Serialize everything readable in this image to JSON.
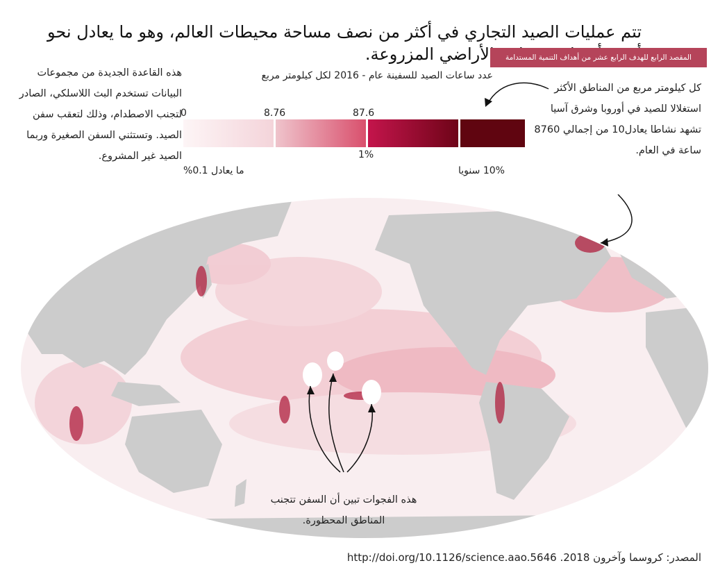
{
  "title": "تتم عمليات الصيد التجاري في أكثر من نصف مساحة محيطات العالم، وهو ما يعادل نحو أربعة أضعاف مساحة الأراضي المزروعة.",
  "sdg_badge": "المقصد الرابع للهدف الرابع عشر من أهداف التنمية المستدامة",
  "legend": {
    "title": "عدد ساعات الصيد للسفينة عام - 2016 لكل كيلومتر مربع",
    "tick_0": "0",
    "tick_1": "8.76",
    "tick_2": "87.6",
    "tick_3": "1%",
    "left_label": "ما يعادل 0.1%",
    "right_label": "10% سنويا",
    "colors": [
      "#f8e4e7",
      "#eaa7b1",
      "#d84c6a",
      "#c1194a",
      "#7a0719",
      "#5e0410"
    ]
  },
  "notes": {
    "left": "هذه القاعدة الجديدة من مجموعات البيانات تستخدم البث اللاسلكي، الصادر لتجنب الاصطدام، وذلك لتعقب سفن الصيد. وتستثني السفن الصغيرة وربما الصيد غير المشروع.",
    "right": "كل كيلومتر مربع من المناطق الأكثر استغلالا للصيد في أوروبا وشرق آسيا تشهد نشاطا يعادل10 من إجمالي 8760 ساعة في العام.",
    "bottom": "هذه الفجوات تبين أن السفن تتجنب المناطق المحظورة."
  },
  "source": "المصدر: كروسما وآخرون 2018. http://doi.org/10.1126/science.aao.5646",
  "map": {
    "ocean_color": "#f9eef0",
    "land_color": "#cccccc",
    "high_color": "#b0203f"
  }
}
